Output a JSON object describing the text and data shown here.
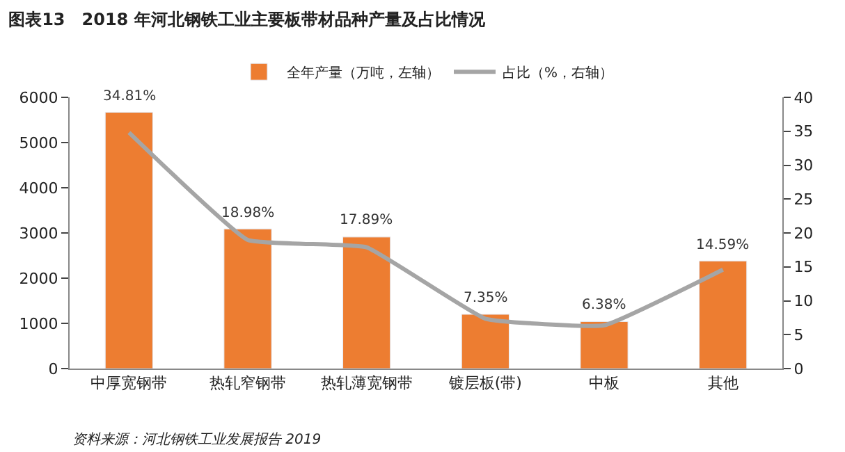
{
  "chart_data": {
    "type": "bar",
    "title": "图表13　2018 年河北钢铁工业主要板带材品种产量及占比情况",
    "categories": [
      "中厚宽钢带",
      "热轧窄钢带",
      "热轧薄宽钢带",
      "镀层板(带)",
      "中板",
      "其他"
    ],
    "series": [
      {
        "name": "全年产量（万吨，左轴）",
        "color": "#ed7d31",
        "values": [
          5670,
          3090,
          2910,
          1200,
          1040,
          2380
        ]
      },
      {
        "name": "占比（%，右轴）",
        "type": "line",
        "axis": "y2",
        "color": "#a5a5a5",
        "values": [
          34.81,
          18.98,
          17.89,
          7.35,
          6.38,
          14.59
        ],
        "value_labels": [
          "34.81%",
          "18.98%",
          "17.89%",
          "7.35%",
          "6.38%",
          "14.59%"
        ]
      }
    ],
    "ylim": [
      0,
      6000
    ],
    "yticks": [
      0,
      1000,
      2000,
      3000,
      4000,
      5000,
      6000
    ],
    "y2lim": [
      0,
      40
    ],
    "y2ticks": [
      0,
      5,
      10,
      15,
      20,
      25,
      30,
      35,
      40
    ],
    "legend": "top",
    "marker": "none",
    "annotations": [
      "资料来源：河北钢铁工业发展报告 2019"
    ]
  }
}
